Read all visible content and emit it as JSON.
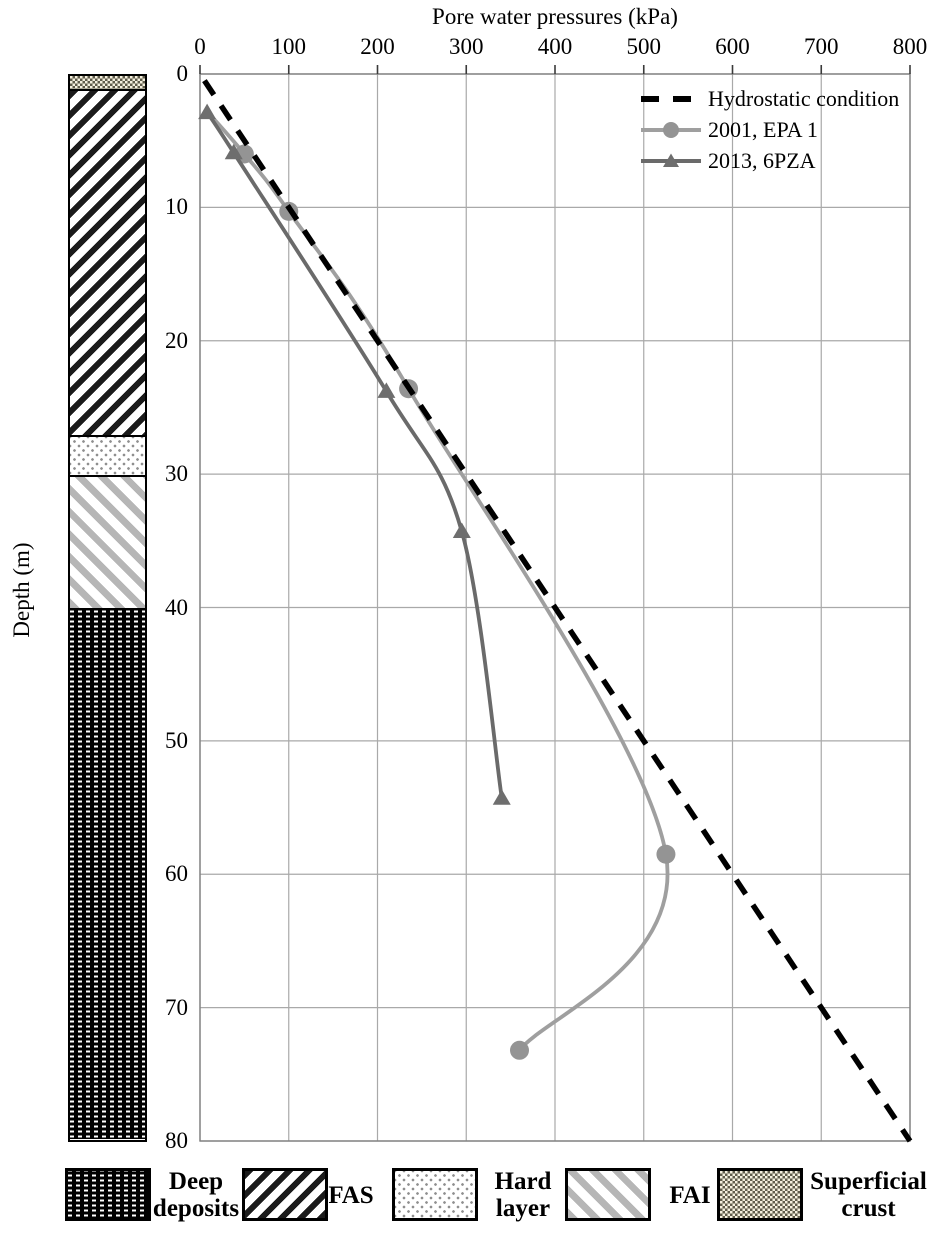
{
  "chart_data": {
    "type": "line",
    "title": "Pore water pressures (kPa)",
    "xlabel": "Pore water pressures (kPa)",
    "ylabel": "Depth (m)",
    "xlim": [
      0,
      800
    ],
    "ylim": [
      0,
      80
    ],
    "y_inverted": true,
    "grid": true,
    "legend_position": "top-right-inside",
    "x_ticks": [
      0,
      100,
      200,
      300,
      400,
      500,
      600,
      700,
      800
    ],
    "y_ticks": [
      0,
      10,
      20,
      30,
      40,
      50,
      60,
      70,
      80
    ],
    "series": [
      {
        "name": "Hydrostatic condition",
        "style": "dashed",
        "color": "#000000",
        "marker": "none",
        "smooth": false,
        "points": [
          [
            0,
            0
          ],
          [
            800,
            80
          ]
        ]
      },
      {
        "name": "2001, EPA 1",
        "style": "solid",
        "color": "#9f9f9f",
        "marker": "circle",
        "marker_color": "#949494",
        "smooth": true,
        "first_marker_hidden": true,
        "points": [
          [
            8,
            2.8
          ],
          [
            50,
            6.0
          ],
          [
            100,
            10.3
          ],
          [
            235,
            23.6
          ],
          [
            525,
            58.5
          ],
          [
            360,
            73.2
          ]
        ]
      },
      {
        "name": "2013, 6PZA",
        "style": "solid",
        "color": "#6a6a6a",
        "marker": "triangle",
        "marker_color": "#6e6e6e",
        "smooth": true,
        "first_marker_hidden": false,
        "points": [
          [
            8,
            2.9
          ],
          [
            38,
            5.9
          ],
          [
            210,
            23.8
          ],
          [
            295,
            34.3
          ],
          [
            340,
            54.3
          ]
        ]
      }
    ]
  },
  "strat_column": {
    "layers": [
      {
        "name": "Superficial crust",
        "pattern": "crust",
        "from_depth": 0,
        "to_depth": 1
      },
      {
        "name": "FAS",
        "pattern": "fas",
        "from_depth": 1,
        "to_depth": 27
      },
      {
        "name": "Hard layer",
        "pattern": "hard",
        "from_depth": 27,
        "to_depth": 30
      },
      {
        "name": "FAI",
        "pattern": "fai",
        "from_depth": 30,
        "to_depth": 40
      },
      {
        "name": "Deep deposits",
        "pattern": "deep",
        "from_depth": 40,
        "to_depth": 80
      }
    ]
  },
  "pattern_legend": {
    "items": [
      {
        "label": "Deep deposits",
        "pattern": "deep"
      },
      {
        "label": "FAS",
        "pattern": "fas"
      },
      {
        "label": "Hard layer",
        "pattern": "hard"
      },
      {
        "label": "FAI",
        "pattern": "fai"
      },
      {
        "label": "Superficial crust",
        "pattern": "crust"
      }
    ]
  },
  "colors": {
    "grid": "#a9a9a9",
    "plot_border": "#7f7f7f",
    "tick": "#3a3a3a",
    "hydrostatic": "#000000",
    "epa_2001": "#9f9f9f",
    "pza_2013": "#6a6a6a"
  }
}
